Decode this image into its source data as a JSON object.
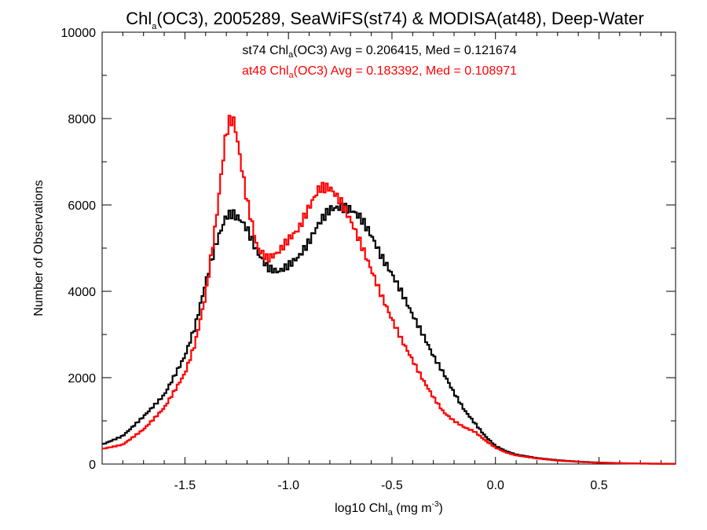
{
  "chart_data": {
    "type": "line",
    "title": {
      "base": "Chl",
      "sub": "a",
      "rest": "(OC3), 2005289, SeaWiFS(st74) & MODISA(at48), Deep-Water"
    },
    "xlabel": {
      "base": "log10 Chl",
      "sub": "a",
      "mid": " (mg m",
      "sup": "-3",
      "end": ")"
    },
    "ylabel": "Number of Observations",
    "xlim": [
      -1.9,
      0.87
    ],
    "ylim": [
      0,
      10000
    ],
    "xticks": [
      -1.5,
      -1.0,
      -0.5,
      0.0,
      0.5
    ],
    "xtick_labels": [
      "-1.5",
      "-1.0",
      "-0.5",
      "0.0",
      "0.5"
    ],
    "yticks": [
      0,
      2000,
      4000,
      6000,
      8000,
      10000
    ],
    "ytick_labels": [
      "0",
      "2000",
      "4000",
      "6000",
      "8000",
      "10000"
    ],
    "grid": false,
    "annotations": [
      {
        "series": "st74",
        "color": "#000000",
        "prefix": "st74 Chl",
        "sub": "a",
        "rest": "(OC3) Avg = 0.206415, Med = 0.121674"
      },
      {
        "series": "at48",
        "color": "#ff0000",
        "prefix": "at48 Chl",
        "sub": "a",
        "rest": "(OC3) Avg = 0.183392, Med = 0.108971"
      }
    ],
    "series": [
      {
        "color": "#000000",
        "x": [
          -1.9,
          -1.8,
          -1.7,
          -1.6,
          -1.5,
          -1.45,
          -1.4,
          -1.35,
          -1.3,
          -1.27,
          -1.23,
          -1.2,
          -1.15,
          -1.1,
          -1.05,
          -1.0,
          -0.95,
          -0.9,
          -0.85,
          -0.8,
          -0.75,
          -0.7,
          -0.65,
          -0.6,
          -0.55,
          -0.5,
          -0.45,
          -0.4,
          -0.35,
          -0.3,
          -0.25,
          -0.2,
          -0.15,
          -0.1,
          -0.05,
          0.0,
          0.05,
          0.1,
          0.2,
          0.3,
          0.4,
          0.5,
          0.6,
          0.7,
          0.87
        ],
        "values": [
          450,
          650,
          1100,
          1600,
          2500,
          3200,
          4200,
          5100,
          5750,
          5800,
          5650,
          5450,
          4900,
          4550,
          4450,
          4600,
          4800,
          5150,
          5600,
          5900,
          5950,
          5900,
          5700,
          5300,
          4800,
          4400,
          3950,
          3450,
          3000,
          2500,
          2100,
          1650,
          1250,
          950,
          650,
          420,
          300,
          220,
          140,
          90,
          55,
          35,
          20,
          12,
          5
        ]
      },
      {
        "color": "#ff0000",
        "x": [
          -1.9,
          -1.8,
          -1.7,
          -1.6,
          -1.5,
          -1.45,
          -1.4,
          -1.35,
          -1.32,
          -1.3,
          -1.28,
          -1.26,
          -1.23,
          -1.2,
          -1.15,
          -1.1,
          -1.05,
          -1.0,
          -0.95,
          -0.9,
          -0.85,
          -0.8,
          -0.75,
          -0.7,
          -0.65,
          -0.6,
          -0.55,
          -0.5,
          -0.45,
          -0.4,
          -0.35,
          -0.3,
          -0.25,
          -0.2,
          -0.15,
          -0.1,
          -0.05,
          0.0,
          0.05,
          0.1,
          0.2,
          0.3,
          0.4,
          0.5,
          0.6,
          0.7,
          0.87
        ],
        "values": [
          350,
          450,
          800,
          1300,
          2100,
          2800,
          3900,
          5600,
          6900,
          7700,
          8000,
          7900,
          7000,
          6100,
          5000,
          4750,
          4900,
          5200,
          5450,
          5950,
          6400,
          6400,
          6100,
          5650,
          5100,
          4500,
          3900,
          3350,
          2850,
          2400,
          1950,
          1550,
          1200,
          1000,
          850,
          750,
          550,
          380,
          270,
          200,
          130,
          80,
          50,
          30,
          18,
          10,
          4
        ]
      }
    ]
  }
}
